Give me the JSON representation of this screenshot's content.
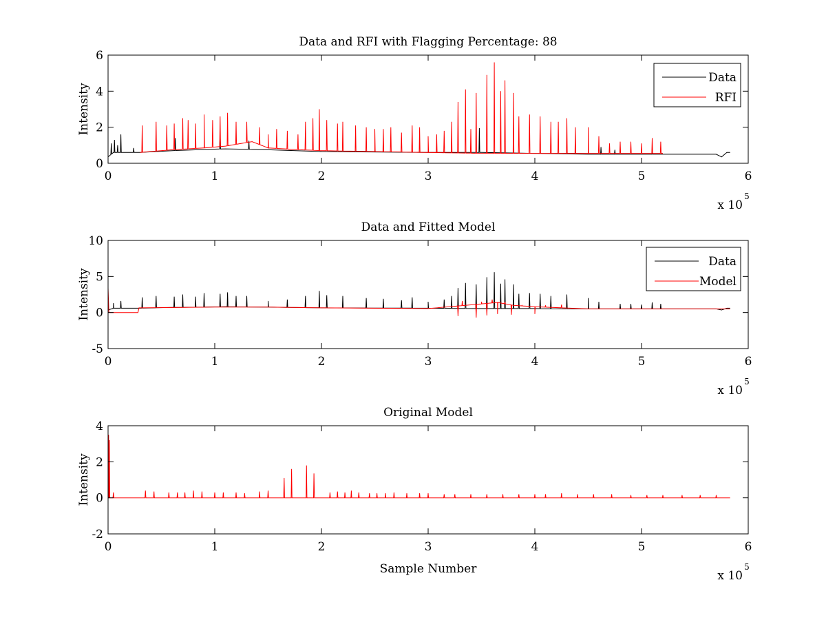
{
  "figure": {
    "background": "#ffffff"
  },
  "chart_data": [
    {
      "type": "line",
      "title": "Data and RFI with Flagging Percentage: 88",
      "xlabel": "",
      "ylabel": "Intensity",
      "xlim": [
        0,
        6
      ],
      "ylim": [
        0,
        6
      ],
      "xticks": [
        0,
        1,
        2,
        3,
        4,
        5,
        6
      ],
      "yticks": [
        0,
        2,
        4,
        6
      ],
      "x_exponent_label": "x 10",
      "x_exponent": "5",
      "legend_position": "top-right",
      "series": [
        {
          "name": "Data",
          "color": "#000000",
          "baseline": [
            [
              0,
              0.35
            ],
            [
              0.05,
              0.6
            ],
            [
              0.3,
              0.6
            ],
            [
              0.6,
              0.7
            ],
            [
              1.1,
              0.8
            ],
            [
              1.5,
              0.75
            ],
            [
              2.0,
              0.65
            ],
            [
              3.0,
              0.6
            ],
            [
              3.5,
              0.6
            ],
            [
              4.0,
              0.55
            ],
            [
              4.5,
              0.5
            ],
            [
              5.7,
              0.5
            ],
            [
              5.75,
              0.35
            ],
            [
              5.8,
              0.6
            ],
            [
              5.83,
              0.6
            ]
          ],
          "spikes": [
            [
              0.03,
              1.1
            ],
            [
              0.06,
              1.3
            ],
            [
              0.09,
              1.0
            ],
            [
              0.12,
              1.6
            ],
            [
              0.24,
              0.85
            ],
            [
              0.63,
              1.4
            ],
            [
              1.05,
              1.7
            ],
            [
              1.32,
              1.25
            ],
            [
              3.48,
              1.95
            ],
            [
              4.62,
              0.9
            ],
            [
              4.75,
              0.75
            ],
            [
              5.1,
              0.55
            ]
          ]
        },
        {
          "name": "RFI",
          "color": "#ff0000",
          "range": [
            0.3,
            5.2
          ],
          "baseline": [
            [
              0.3,
              0.6
            ],
            [
              0.6,
              0.75
            ],
            [
              0.9,
              0.85
            ],
            [
              1.1,
              0.95
            ],
            [
              1.35,
              1.2
            ],
            [
              1.5,
              0.85
            ],
            [
              1.8,
              0.75
            ],
            [
              2.0,
              0.7
            ],
            [
              2.5,
              0.65
            ],
            [
              3.0,
              0.6
            ],
            [
              3.5,
              0.55
            ],
            [
              4.0,
              0.55
            ],
            [
              4.5,
              0.55
            ],
            [
              5.2,
              0.55
            ]
          ],
          "spikes": [
            [
              0.32,
              2.1
            ],
            [
              0.45,
              2.3
            ],
            [
              0.55,
              2.1
            ],
            [
              0.62,
              2.2
            ],
            [
              0.7,
              2.5
            ],
            [
              0.75,
              2.4
            ],
            [
              0.82,
              2.2
            ],
            [
              0.9,
              2.7
            ],
            [
              0.98,
              2.4
            ],
            [
              1.05,
              2.6
            ],
            [
              1.12,
              2.8
            ],
            [
              1.2,
              2.3
            ],
            [
              1.3,
              2.3
            ],
            [
              1.42,
              2.0
            ],
            [
              1.5,
              1.6
            ],
            [
              1.58,
              1.9
            ],
            [
              1.68,
              1.8
            ],
            [
              1.78,
              1.6
            ],
            [
              1.85,
              2.3
            ],
            [
              1.92,
              2.5
            ],
            [
              1.98,
              3.0
            ],
            [
              2.05,
              2.4
            ],
            [
              2.15,
              2.2
            ],
            [
              2.2,
              2.3
            ],
            [
              2.32,
              2.1
            ],
            [
              2.42,
              2.0
            ],
            [
              2.5,
              1.9
            ],
            [
              2.58,
              1.9
            ],
            [
              2.65,
              2.0
            ],
            [
              2.75,
              1.7
            ],
            [
              2.85,
              2.1
            ],
            [
              2.92,
              2.0
            ],
            [
              3.0,
              1.5
            ],
            [
              3.08,
              1.6
            ],
            [
              3.15,
              1.8
            ],
            [
              3.22,
              2.3
            ],
            [
              3.28,
              3.4
            ],
            [
              3.35,
              4.1
            ],
            [
              3.4,
              1.9
            ],
            [
              3.45,
              3.9
            ],
            [
              3.55,
              4.9
            ],
            [
              3.62,
              5.6
            ],
            [
              3.68,
              4.0
            ],
            [
              3.72,
              4.6
            ],
            [
              3.8,
              3.9
            ],
            [
              3.85,
              2.6
            ],
            [
              3.95,
              2.7
            ],
            [
              4.05,
              2.6
            ],
            [
              4.15,
              2.3
            ],
            [
              4.22,
              2.3
            ],
            [
              4.3,
              2.5
            ],
            [
              4.38,
              2.0
            ],
            [
              4.5,
              2.0
            ],
            [
              4.6,
              1.5
            ],
            [
              4.7,
              1.1
            ],
            [
              4.8,
              1.2
            ],
            [
              4.9,
              1.2
            ],
            [
              5.0,
              1.1
            ],
            [
              5.1,
              1.4
            ],
            [
              5.18,
              1.2
            ]
          ]
        }
      ]
    },
    {
      "type": "line",
      "title": "Data and Fitted Model",
      "xlabel": "",
      "ylabel": "Intensity",
      "xlim": [
        0,
        6
      ],
      "ylim": [
        -5,
        10
      ],
      "xticks": [
        0,
        1,
        2,
        3,
        4,
        5,
        6
      ],
      "yticks": [
        -5,
        0,
        5,
        10
      ],
      "x_exponent_label": "x 10",
      "x_exponent": "5",
      "legend_position": "top-right",
      "series": [
        {
          "name": "Data",
          "color": "#000000",
          "baseline": [
            [
              0,
              0.35
            ],
            [
              0.05,
              0.6
            ],
            [
              0.3,
              0.6
            ],
            [
              0.6,
              0.7
            ],
            [
              1.1,
              0.8
            ],
            [
              1.5,
              0.75
            ],
            [
              2.0,
              0.65
            ],
            [
              3.0,
              0.6
            ],
            [
              3.5,
              0.55
            ],
            [
              4.0,
              0.55
            ],
            [
              4.5,
              0.5
            ],
            [
              5.7,
              0.5
            ],
            [
              5.75,
              0.35
            ],
            [
              5.8,
              0.6
            ],
            [
              5.83,
              0.6
            ]
          ],
          "spikes": [
            [
              0.05,
              1.3
            ],
            [
              0.12,
              1.6
            ],
            [
              0.32,
              2.1
            ],
            [
              0.45,
              2.3
            ],
            [
              0.62,
              2.2
            ],
            [
              0.7,
              2.5
            ],
            [
              0.82,
              2.2
            ],
            [
              0.9,
              2.7
            ],
            [
              1.05,
              2.6
            ],
            [
              1.12,
              2.8
            ],
            [
              1.2,
              2.3
            ],
            [
              1.3,
              2.3
            ],
            [
              1.5,
              1.6
            ],
            [
              1.68,
              1.8
            ],
            [
              1.85,
              2.3
            ],
            [
              1.98,
              3.0
            ],
            [
              2.05,
              2.4
            ],
            [
              2.2,
              2.3
            ],
            [
              2.42,
              2.0
            ],
            [
              2.58,
              1.9
            ],
            [
              2.75,
              1.7
            ],
            [
              2.85,
              2.1
            ],
            [
              3.0,
              1.5
            ],
            [
              3.15,
              1.8
            ],
            [
              3.22,
              2.3
            ],
            [
              3.28,
              3.4
            ],
            [
              3.35,
              4.1
            ],
            [
              3.45,
              3.9
            ],
            [
              3.55,
              4.9
            ],
            [
              3.62,
              5.6
            ],
            [
              3.68,
              4.0
            ],
            [
              3.72,
              4.6
            ],
            [
              3.8,
              3.9
            ],
            [
              3.85,
              2.6
            ],
            [
              3.95,
              2.7
            ],
            [
              4.05,
              2.6
            ],
            [
              4.15,
              2.3
            ],
            [
              4.3,
              2.5
            ],
            [
              4.5,
              2.0
            ],
            [
              4.6,
              1.5
            ],
            [
              4.8,
              1.2
            ],
            [
              4.9,
              1.2
            ],
            [
              5.0,
              1.1
            ],
            [
              5.1,
              1.4
            ],
            [
              5.18,
              1.2
            ]
          ]
        },
        {
          "name": "Model",
          "color": "#ff0000",
          "baseline": [
            [
              0,
              3.4
            ],
            [
              0.008,
              0.0
            ],
            [
              0.28,
              0.0
            ],
            [
              0.29,
              0.65
            ],
            [
              1.0,
              0.75
            ],
            [
              1.5,
              0.75
            ],
            [
              2.0,
              0.65
            ],
            [
              2.5,
              0.6
            ],
            [
              3.0,
              0.55
            ],
            [
              3.2,
              0.8
            ],
            [
              3.5,
              1.2
            ],
            [
              3.65,
              1.4
            ],
            [
              3.8,
              1.0
            ],
            [
              4.0,
              0.8
            ],
            [
              4.5,
              0.5
            ],
            [
              5.0,
              0.5
            ],
            [
              5.83,
              0.5
            ]
          ],
          "spikes": [
            [
              3.28,
              -0.5
            ],
            [
              3.32,
              1.6
            ],
            [
              3.45,
              -0.7
            ],
            [
              3.5,
              1.5
            ],
            [
              3.55,
              -0.4
            ],
            [
              3.6,
              1.8
            ],
            [
              3.65,
              -0.2
            ],
            [
              3.72,
              1.5
            ],
            [
              3.78,
              -0.3
            ],
            [
              3.88,
              1.0
            ],
            [
              4.0,
              -0.2
            ],
            [
              4.1,
              1.0
            ],
            [
              4.25,
              1.1
            ]
          ]
        }
      ]
    },
    {
      "type": "line",
      "title": "Original Model",
      "xlabel": "Sample Number",
      "ylabel": "Intensity",
      "xlim": [
        0,
        6
      ],
      "ylim": [
        -2,
        4
      ],
      "xticks": [
        0,
        1,
        2,
        3,
        4,
        5,
        6
      ],
      "yticks": [
        -2,
        0,
        2,
        4
      ],
      "x_exponent_label": "x 10",
      "x_exponent": "5",
      "legend_position": "none",
      "series": [
        {
          "name": "Original Model",
          "color": "#ff0000",
          "baseline": [
            [
              0,
              0
            ],
            [
              5.83,
              0
            ]
          ],
          "spikes": [
            [
              0.005,
              3.5
            ],
            [
              0.012,
              3.2
            ],
            [
              0.05,
              0.3
            ],
            [
              0.35,
              0.4
            ],
            [
              0.43,
              0.35
            ],
            [
              0.57,
              0.3
            ],
            [
              0.65,
              0.3
            ],
            [
              0.72,
              0.3
            ],
            [
              0.8,
              0.4
            ],
            [
              0.88,
              0.35
            ],
            [
              1.0,
              0.3
            ],
            [
              1.08,
              0.3
            ],
            [
              1.2,
              0.3
            ],
            [
              1.28,
              0.25
            ],
            [
              1.42,
              0.35
            ],
            [
              1.5,
              0.4
            ],
            [
              1.65,
              1.1
            ],
            [
              1.72,
              1.6
            ],
            [
              1.86,
              1.8
            ],
            [
              1.93,
              1.35
            ],
            [
              2.08,
              0.3
            ],
            [
              2.15,
              0.35
            ],
            [
              2.22,
              0.3
            ],
            [
              2.28,
              0.4
            ],
            [
              2.35,
              0.3
            ],
            [
              2.45,
              0.25
            ],
            [
              2.52,
              0.25
            ],
            [
              2.6,
              0.25
            ],
            [
              2.68,
              0.3
            ],
            [
              2.8,
              0.25
            ],
            [
              2.92,
              0.25
            ],
            [
              3.0,
              0.25
            ],
            [
              3.15,
              0.2
            ],
            [
              3.25,
              0.2
            ],
            [
              3.4,
              0.2
            ],
            [
              3.55,
              0.2
            ],
            [
              3.7,
              0.2
            ],
            [
              3.85,
              0.2
            ],
            [
              4.0,
              0.2
            ],
            [
              4.1,
              0.2
            ],
            [
              4.25,
              0.25
            ],
            [
              4.4,
              0.2
            ],
            [
              4.55,
              0.2
            ],
            [
              4.72,
              0.2
            ],
            [
              4.9,
              0.15
            ],
            [
              5.05,
              0.15
            ],
            [
              5.2,
              0.15
            ],
            [
              5.38,
              0.15
            ],
            [
              5.55,
              0.15
            ],
            [
              5.7,
              0.15
            ]
          ]
        }
      ]
    }
  ]
}
